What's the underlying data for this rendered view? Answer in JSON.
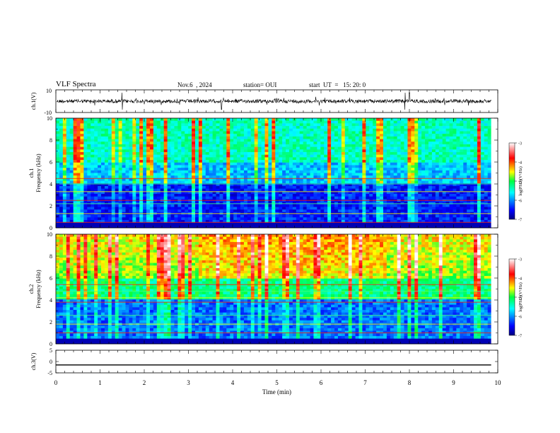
{
  "header": {
    "title": "VLF Spectra",
    "date": "Nov.6  , 2024",
    "station": "station= OUI",
    "start": "start  UT  =   15: 20: 0"
  },
  "chart_data": [
    {
      "type": "line",
      "ylabel": "ch.1(V)",
      "ylim": [
        -10,
        10
      ],
      "yticks": [
        "10",
        "-10"
      ],
      "description_values": {
        "baseline": 0,
        "noise_band": [
          -2,
          2
        ],
        "spikes_at_min": [
          1.5,
          3.75,
          7.9,
          8.0
        ]
      }
    },
    {
      "type": "heatmap",
      "ylabel": "Frequency (kHz)",
      "chlabel": "ch.1",
      "ylim": [
        0,
        10
      ],
      "yticks": [
        "0",
        "2",
        "4",
        "6",
        "8",
        "10"
      ],
      "colorbar": {
        "label": "log(PSD)(V²/Hz)",
        "ticks": [
          "-3",
          "-4",
          "-5",
          "-6",
          "-7"
        ],
        "range": [
          -7,
          -3
        ]
      },
      "bands_khz": [
        0.5,
        1.3,
        2.2,
        2.5,
        3.3,
        4.0,
        4.5
      ]
    },
    {
      "type": "heatmap",
      "ylabel": "Frequency (kHz)",
      "chlabel": "ch.2",
      "ylim": [
        0,
        10
      ],
      "yticks": [
        "0",
        "2",
        "4",
        "6",
        "8",
        "10"
      ],
      "colorbar": {
        "label": "log(PSD)(V²/Hz)",
        "ticks": [
          "-3",
          "-4",
          "-5",
          "-6",
          "-7"
        ],
        "range": [
          -7,
          -3
        ]
      },
      "bands_khz": [
        1.0,
        1.8,
        2.6,
        3.8,
        4.2,
        4.8,
        5.4
      ]
    },
    {
      "type": "line",
      "ylabel": "ch.3(V)",
      "ylim": [
        -5,
        5
      ],
      "yticks": [
        "5",
        "0",
        "-5"
      ],
      "values": [
        -1.5,
        -1.5
      ]
    }
  ],
  "xaxis": {
    "label": "Time  (min)",
    "ticks": [
      "0",
      "1",
      "2",
      "3",
      "4",
      "5",
      "6",
      "7",
      "8",
      "9",
      "10"
    ],
    "xlim": [
      0,
      10
    ],
    "data_end_min": 9.85
  }
}
